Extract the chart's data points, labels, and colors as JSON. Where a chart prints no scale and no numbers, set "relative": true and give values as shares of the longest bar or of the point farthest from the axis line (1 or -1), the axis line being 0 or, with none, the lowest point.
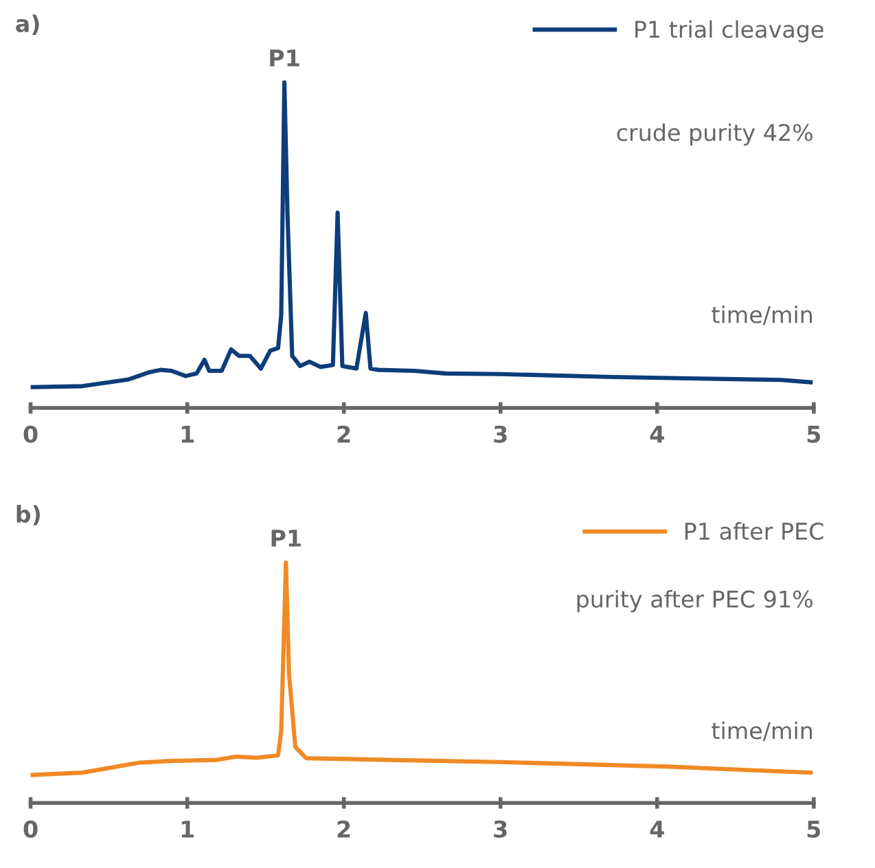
{
  "chart_data": [
    {
      "type": "line",
      "title": "a)",
      "xlabel": "time/min",
      "relative": true,
      "legend": "top right",
      "xlim": [
        0,
        5
      ],
      "xticks": [
        0,
        1,
        2,
        3,
        4,
        5
      ],
      "grid": false,
      "marker": "none",
      "line_style": "solid",
      "annotations": [
        {
          "text": "P1",
          "x": 1.62,
          "y": 1.0
        },
        "crude purity 42%"
      ],
      "series": [
        {
          "name": "P1 trial cleavage",
          "color": "#0d3d7a",
          "x": [
            0,
            0.33,
            0.62,
            0.76,
            0.83,
            0.9,
            0.99,
            1.06,
            1.11,
            1.14,
            1.22,
            1.28,
            1.33,
            1.4,
            1.47,
            1.53,
            1.58,
            1.6,
            1.62,
            1.64,
            1.67,
            1.72,
            1.78,
            1.85,
            1.93,
            1.96,
            1.99,
            2.08,
            2.14,
            2.17,
            2.22,
            2.45,
            2.65,
            3.0,
            3.72,
            4.43,
            4.79,
            4.98
          ],
          "values": [
            0.064,
            0.067,
            0.087,
            0.11,
            0.117,
            0.114,
            0.098,
            0.106,
            0.148,
            0.114,
            0.114,
            0.18,
            0.16,
            0.16,
            0.121,
            0.176,
            0.184,
            0.285,
            1.0,
            0.596,
            0.16,
            0.129,
            0.142,
            0.126,
            0.132,
            0.6,
            0.129,
            0.121,
            0.292,
            0.121,
            0.117,
            0.114,
            0.106,
            0.104,
            0.095,
            0.089,
            0.086,
            0.079
          ]
        }
      ]
    },
    {
      "type": "line",
      "title": "b)",
      "xlabel": "time/min",
      "relative": true,
      "legend": "top right",
      "xlim": [
        0,
        5
      ],
      "xticks": [
        0,
        1,
        2,
        3,
        4,
        5
      ],
      "grid": false,
      "marker": "none",
      "line_style": "solid",
      "annotations": [
        {
          "text": "P1",
          "x": 1.63,
          "y": 1.0
        },
        "purity after PEC 91%"
      ],
      "series": [
        {
          "name": "P1 after PEC",
          "color": "#f08a24",
          "x": [
            0,
            0.33,
            0.69,
            0.87,
            1.19,
            1.31,
            1.44,
            1.58,
            1.6,
            1.63,
            1.65,
            1.69,
            1.76,
            2.29,
            3.0,
            4.07,
            4.98
          ],
          "values": [
            0.116,
            0.126,
            0.167,
            0.174,
            0.179,
            0.193,
            0.188,
            0.198,
            0.3,
            1.0,
            0.535,
            0.233,
            0.186,
            0.179,
            0.17,
            0.151,
            0.126
          ]
        }
      ]
    }
  ]
}
